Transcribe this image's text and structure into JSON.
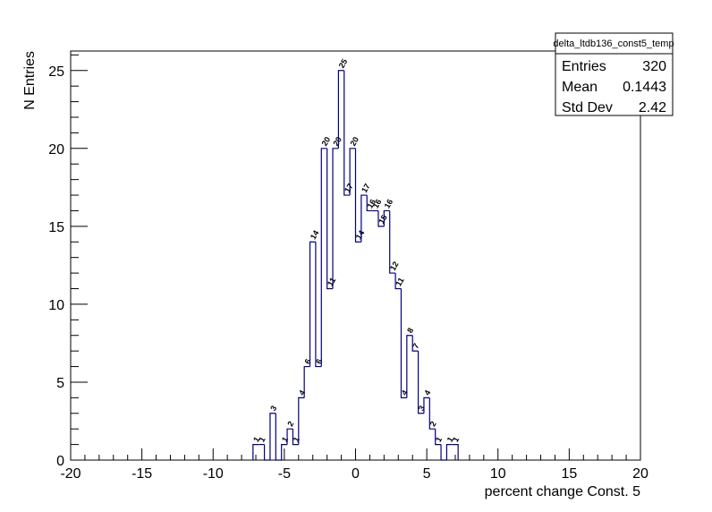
{
  "chart_data": {
    "type": "histogram",
    "bins": [
      -7.2,
      -6.8,
      -6.4,
      -6,
      -5.6,
      -5.2,
      -4.8,
      -4.4,
      -4,
      -3.6,
      -3.2,
      -2.8,
      -2.4,
      -2,
      -1.6,
      -1.2,
      -0.8,
      -0.4,
      0,
      0.4,
      0.8,
      1.2,
      1.6,
      2,
      2.4,
      2.8,
      3.2,
      3.6,
      4,
      4.4,
      4.8,
      5.2,
      5.6,
      6,
      6.4,
      6.8,
      7.2
    ],
    "values": [
      1,
      1,
      0,
      3,
      0,
      1,
      2,
      1,
      4,
      6,
      14,
      6,
      20,
      11,
      20,
      25,
      17,
      20,
      14,
      17,
      16,
      16,
      15,
      16,
      12,
      11,
      4,
      8,
      7,
      3,
      4,
      2,
      1,
      0,
      1,
      1
    ],
    "color": "#000080",
    "xlabel": "percent change Const. 5",
    "ylabel": "N Entries",
    "xlim": [
      -20,
      20
    ],
    "ylim": [
      0,
      26.25
    ],
    "xticks": [
      -20,
      -15,
      -10,
      -5,
      0,
      5,
      10,
      15,
      20
    ],
    "yticks": [
      0,
      5,
      10,
      15,
      20,
      25
    ],
    "xticks_minor": [
      -19,
      -18,
      -17,
      -16,
      -14,
      -13,
      -12,
      -11,
      -9,
      -8,
      -7,
      -6,
      -4,
      -3,
      -2,
      -1,
      1,
      2,
      3,
      4,
      6,
      7,
      8,
      9,
      11,
      12,
      13,
      14,
      16,
      17,
      18,
      19
    ],
    "yticks_minor": [
      1,
      2,
      3,
      4,
      6,
      7,
      8,
      9,
      11,
      12,
      13,
      14,
      16,
      17,
      18,
      19,
      21,
      22,
      23,
      24,
      26
    ],
    "stats": {
      "title": "delta_ltdb136_const5_temp",
      "rows": [
        {
          "label": "Entries",
          "value": 320
        },
        {
          "label": "Mean",
          "value": 0.1443
        },
        {
          "label": "Std Dev",
          "value": 2.42
        }
      ]
    }
  }
}
